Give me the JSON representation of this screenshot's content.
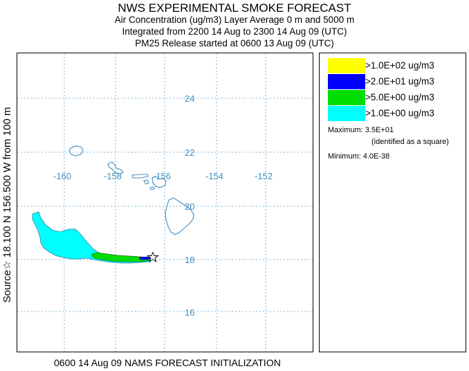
{
  "header": {
    "title": "NWS EXPERIMENTAL SMOKE FORECAST",
    "line1": "Air Concentration (ug/m3) Layer Average    0 m and  5000 m",
    "line2": "Integrated from 2200 14 Aug to 2300 14 Aug 09 (UTC)",
    "line3": "PM25 Release started at 0600 13 Aug 09 (UTC)"
  },
  "side_label": "Source☆ 18.100 N 156.500 W     from  100 m",
  "footer": "0600 14 Aug 09 NAMS FORECAST INITIALIZATION",
  "map": {
    "lat_labels": [
      "24",
      "22",
      "20",
      "18",
      "16"
    ],
    "lon_labels": [
      "-160",
      "-158",
      "-156",
      "-154",
      "-152"
    ],
    "grid_color": "#7fb3d9",
    "coast_color": "#3f8fbf",
    "label_color": "#3f8fbf",
    "source_marker": "star-icon"
  },
  "legend": {
    "items": [
      {
        "label": ">1.0E+02 ug/m3",
        "color": "#ffff00"
      },
      {
        "label": ">2.0E+01 ug/m3",
        "color": "#0000ff"
      },
      {
        "label": ">5.0E+00 ug/m3",
        "color": "#00dd00"
      },
      {
        "label": ">1.0E+00 ug/m3",
        "color": "#00ffff"
      }
    ],
    "maximum": "Maximum: 3.5E+01",
    "identified": "(identified as a square)",
    "minimum": "Minimum: 4.0E-38"
  }
}
